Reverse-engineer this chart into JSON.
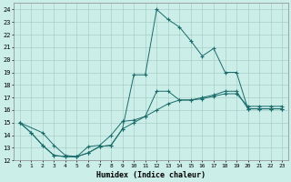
{
  "xlabel": "Humidex (Indice chaleur)",
  "bg_color": "#cceee8",
  "line_color": "#1a6b6b",
  "xlim": [
    -0.5,
    23.5
  ],
  "ylim": [
    12,
    24.5
  ],
  "xticks": [
    0,
    1,
    2,
    3,
    4,
    5,
    6,
    7,
    8,
    9,
    10,
    11,
    12,
    13,
    14,
    15,
    16,
    17,
    18,
    19,
    20,
    21,
    22,
    23
  ],
  "yticks": [
    12,
    13,
    14,
    15,
    16,
    17,
    18,
    19,
    20,
    21,
    22,
    23,
    24
  ],
  "line1_x": [
    0,
    1,
    2,
    3,
    4,
    5,
    6,
    7,
    8,
    9,
    10,
    11,
    12,
    13,
    14,
    15,
    16,
    17,
    18,
    19,
    20,
    21,
    22,
    23
  ],
  "line1_y": [
    15,
    14.2,
    13.2,
    12.4,
    12.3,
    12.3,
    12.6,
    13.1,
    13.2,
    14.5,
    18.8,
    18.8,
    24.0,
    23.2,
    22.6,
    21.5,
    20.3,
    20.9,
    19.0,
    19.0,
    16.1,
    16.1,
    16.1,
    16.1
  ],
  "line2_x": [
    0,
    2,
    3,
    4,
    5,
    6,
    7,
    8,
    9,
    10,
    11,
    12,
    13,
    14,
    15,
    16,
    17,
    18,
    19,
    20,
    21,
    22,
    23
  ],
  "line2_y": [
    15,
    14.2,
    13.2,
    12.4,
    12.3,
    13.1,
    13.2,
    14.0,
    15.1,
    15.2,
    15.5,
    17.5,
    17.5,
    16.8,
    16.8,
    17.0,
    17.2,
    17.5,
    17.5,
    16.1,
    16.1,
    16.1,
    16.1
  ],
  "line3_x": [
    0,
    1,
    2,
    3,
    4,
    5,
    6,
    7,
    8,
    9,
    10,
    11,
    12,
    13,
    14,
    15,
    16,
    17,
    18,
    19,
    20,
    21,
    22,
    23
  ],
  "line3_y": [
    15,
    14.2,
    13.2,
    12.4,
    12.3,
    12.3,
    12.6,
    13.1,
    13.2,
    14.5,
    15.0,
    15.5,
    16.0,
    16.5,
    16.8,
    16.8,
    16.9,
    17.1,
    17.3,
    17.3,
    16.3,
    16.3,
    16.3,
    16.3
  ]
}
